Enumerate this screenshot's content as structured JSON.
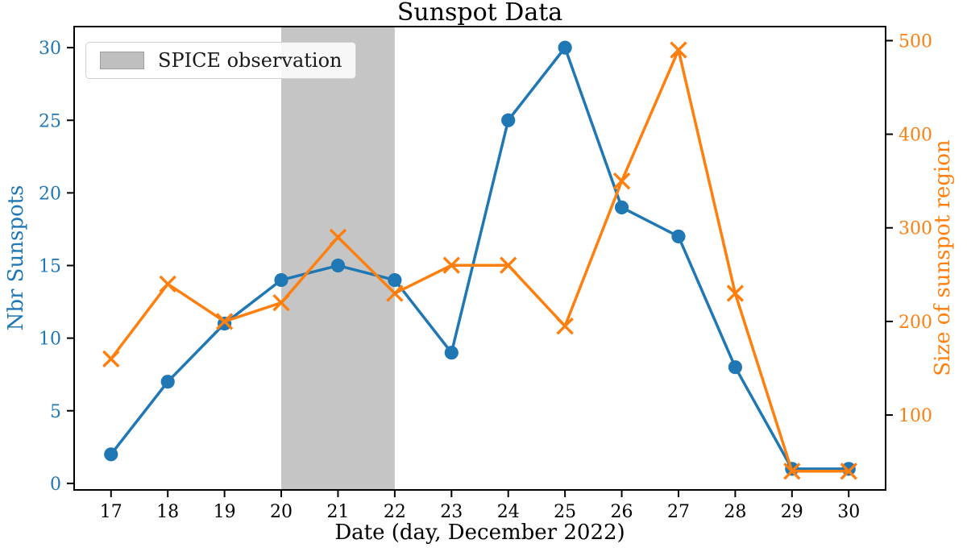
{
  "title": "Sunspot Data",
  "legend": {
    "label": "SPICE observation",
    "swatch_color": "#bfbfbf"
  },
  "axes": {
    "x": {
      "label": "Date (day, December 2022)",
      "ticks": [
        17,
        18,
        19,
        20,
        21,
        22,
        23,
        24,
        25,
        26,
        27,
        28,
        29,
        30
      ],
      "lim": [
        16.35,
        30.65
      ],
      "color": "#000000"
    },
    "y_left": {
      "label": "Nbr Sunspots",
      "ticks": [
        0,
        5,
        10,
        15,
        20,
        25,
        30
      ],
      "lim": [
        -0.45,
        31.45
      ],
      "color": "#1f77b4"
    },
    "y_right": {
      "label": "Size of sunspot region",
      "ticks": [
        100,
        200,
        300,
        400,
        500
      ],
      "lim": [
        20,
        515
      ],
      "color": "#ff7f0e"
    }
  },
  "chart_data": {
    "type": "line",
    "title": "Sunspot Data",
    "xlabel": "Date (day, December 2022)",
    "ylabel_left": "Nbr Sunspots",
    "ylabel_right": "Size of sunspot region",
    "grid": false,
    "legend_position": "upper-left",
    "x": [
      17,
      18,
      19,
      20,
      21,
      22,
      23,
      24,
      25,
      26,
      27,
      28,
      29,
      30
    ],
    "series": [
      {
        "name": "Nbr Sunspots",
        "axis": "left",
        "color": "#1f77b4",
        "marker": "circle",
        "values": [
          2,
          7,
          11,
          14,
          15,
          14,
          9,
          25,
          30,
          19,
          17,
          8,
          1,
          1
        ]
      },
      {
        "name": "Size of sunspot region",
        "axis": "right",
        "color": "#ff7f0e",
        "marker": "x",
        "values": [
          160,
          240,
          200,
          220,
          290,
          230,
          260,
          260,
          195,
          350,
          490,
          230,
          40,
          40
        ]
      }
    ],
    "shaded_region": {
      "label": "SPICE observation",
      "x_from": 20,
      "x_to": 22,
      "fill": "rgba(127,127,127,0.45)"
    }
  }
}
